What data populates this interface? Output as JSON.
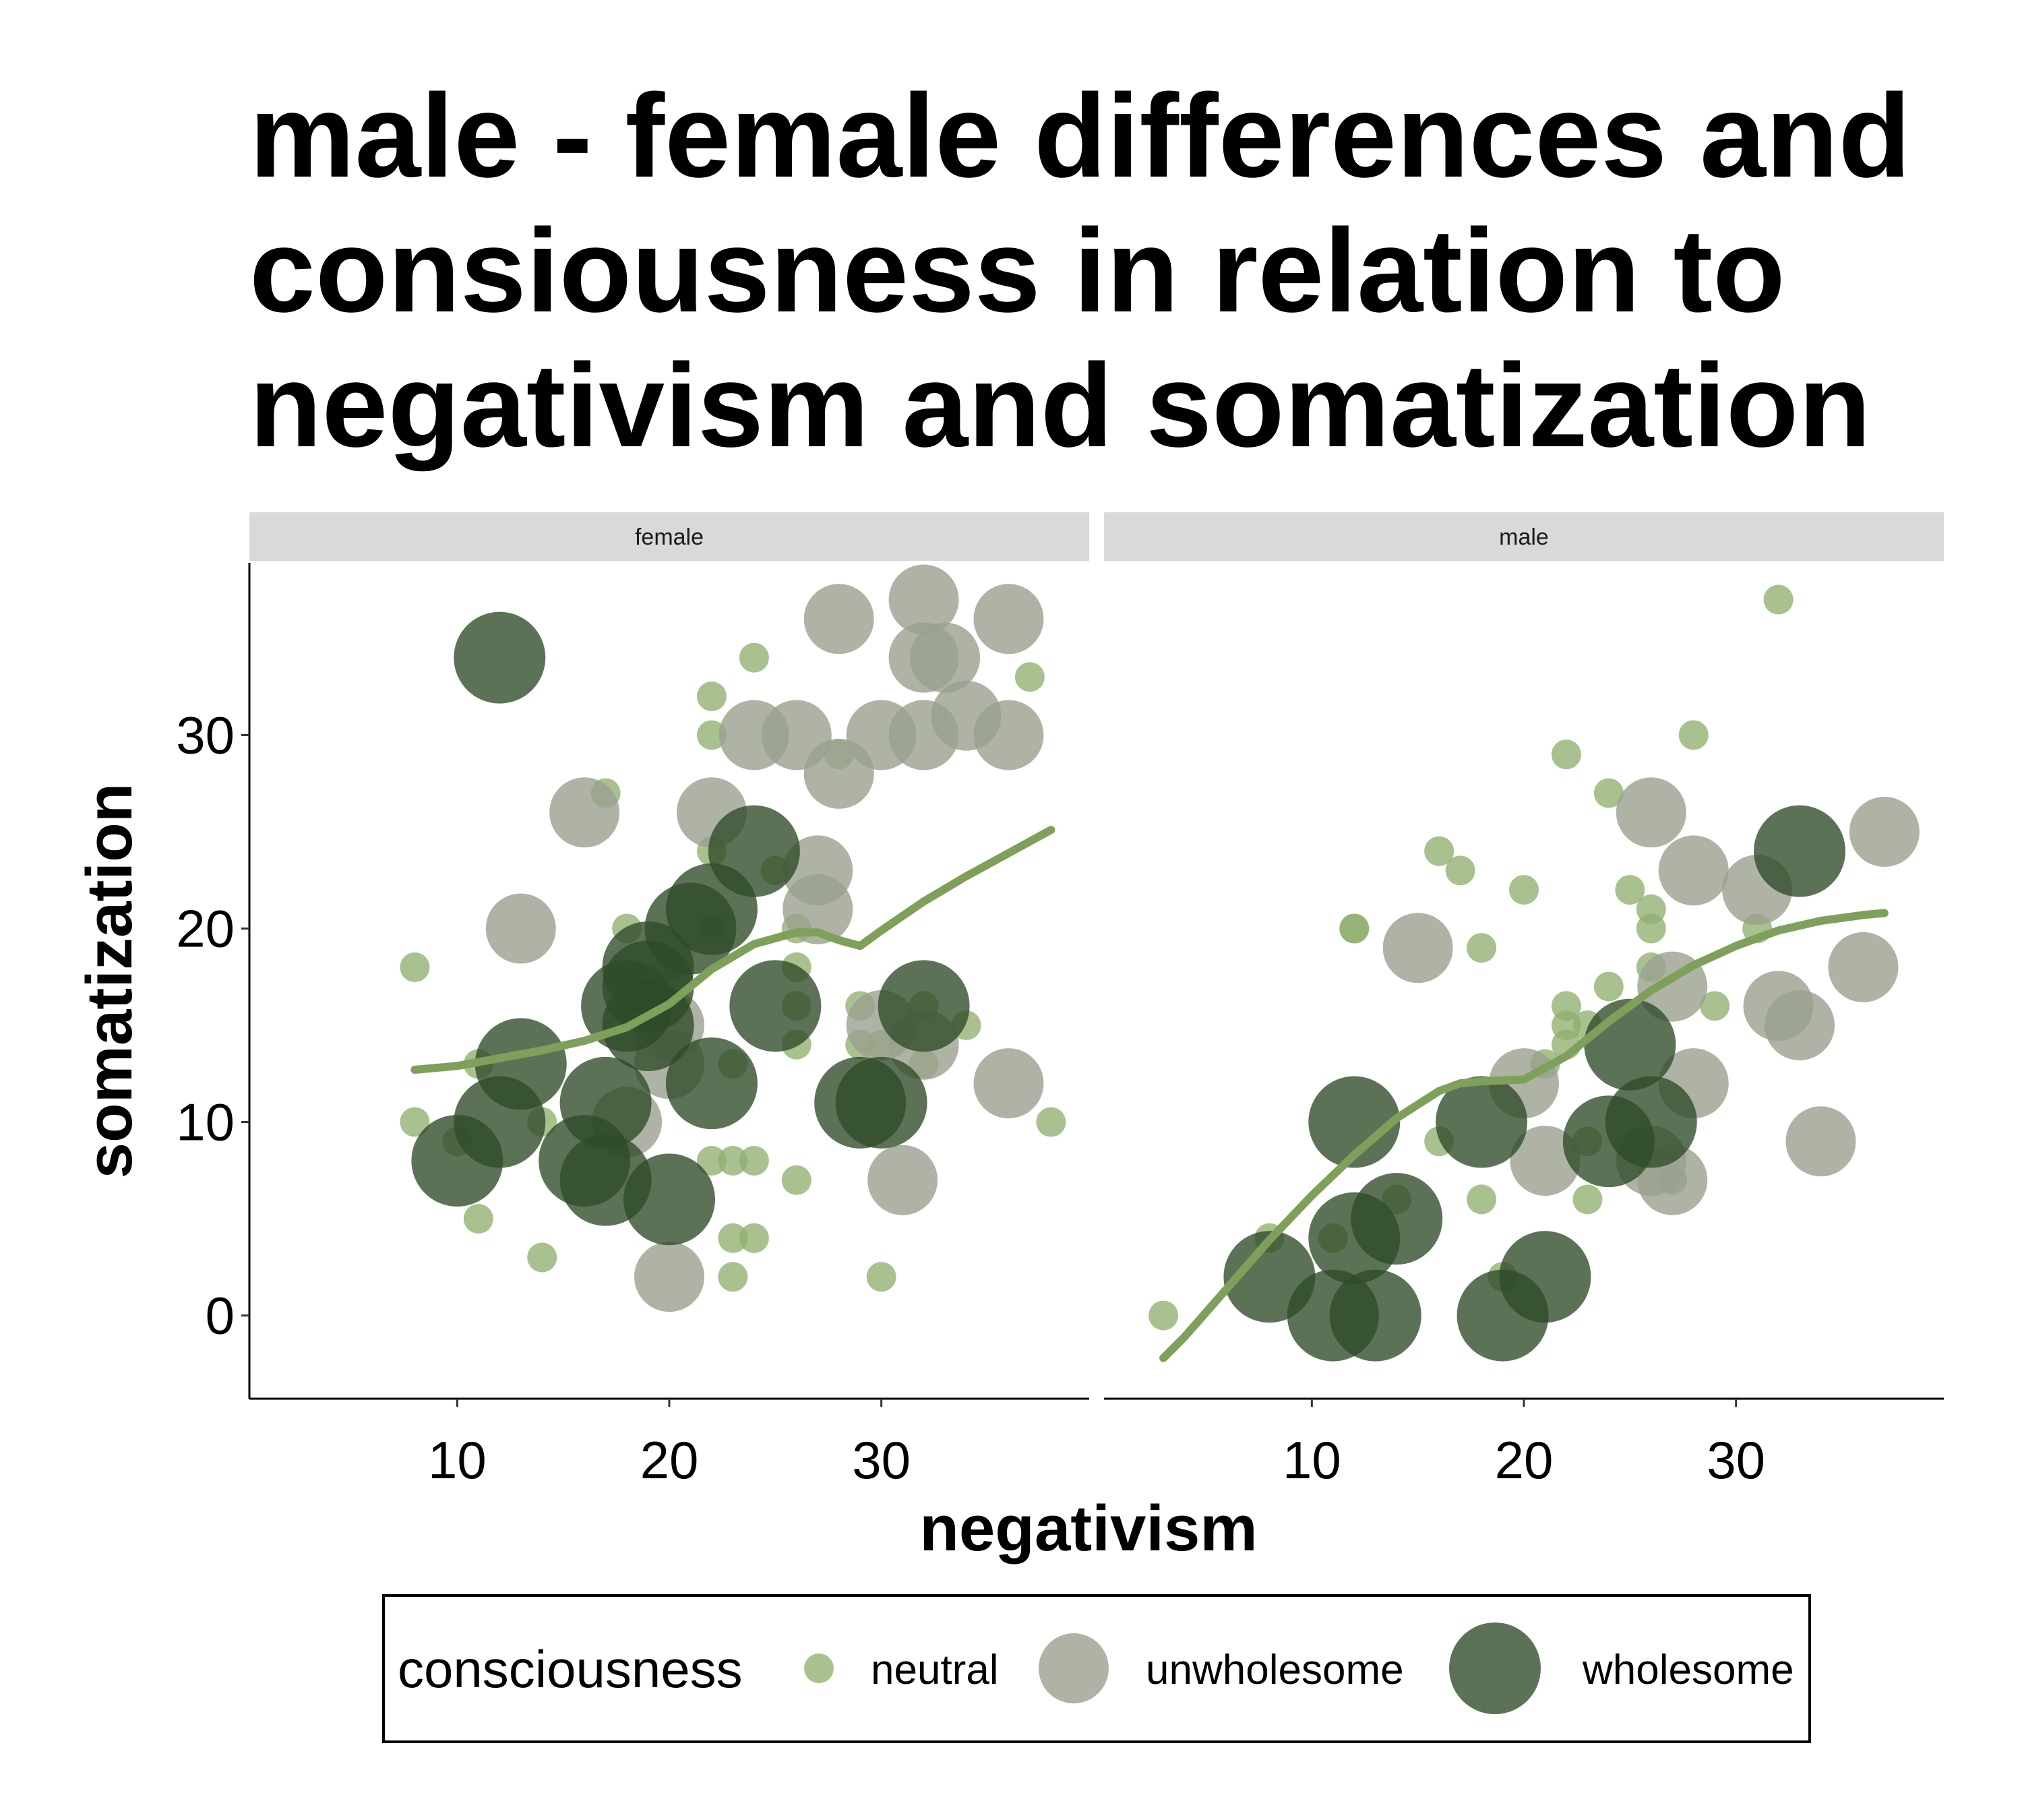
{
  "chart_data": {
    "type": "scatter",
    "title_lines": [
      "male - female differences and",
      "consiousness in relation to",
      "negativism and somatization"
    ],
    "xlabel": "negativism",
    "ylabel": "somatization",
    "xlim": [
      0.2,
      39.8
    ],
    "ylim": [
      -4.3,
      38.9
    ],
    "xticks": [
      10,
      20,
      30
    ],
    "yticks": [
      0,
      10,
      20,
      30
    ],
    "grid": false,
    "smooth_color": "#7FA05A",
    "legend": {
      "title": "consciousness",
      "position": "bottom",
      "items": [
        {
          "label": "neutral",
          "size_rank": 1,
          "color": "#8FAF70"
        },
        {
          "label": "unwholesome",
          "size_rank": 2,
          "color": "#9AA08E"
        },
        {
          "label": "wholesome",
          "size_rank": 3,
          "color": "#2E4A28"
        }
      ]
    },
    "panels": [
      {
        "strip": "female",
        "points": [
          {
            "x": 8,
            "y": 18,
            "c": "neutral"
          },
          {
            "x": 8,
            "y": 10,
            "c": "neutral"
          },
          {
            "x": 10,
            "y": 9,
            "c": "neutral"
          },
          {
            "x": 11,
            "y": 13,
            "c": "neutral"
          },
          {
            "x": 11,
            "y": 5,
            "c": "neutral"
          },
          {
            "x": 14,
            "y": 3,
            "c": "neutral"
          },
          {
            "x": 14,
            "y": 10,
            "c": "neutral"
          },
          {
            "x": 17,
            "y": 27,
            "c": "neutral"
          },
          {
            "x": 18,
            "y": 20,
            "c": "neutral"
          },
          {
            "x": 20,
            "y": 14,
            "c": "neutral"
          },
          {
            "x": 20,
            "y": 18,
            "c": "neutral"
          },
          {
            "x": 22,
            "y": 32,
            "c": "neutral"
          },
          {
            "x": 22,
            "y": 30,
            "c": "neutral"
          },
          {
            "x": 22,
            "y": 24,
            "c": "neutral"
          },
          {
            "x": 22,
            "y": 20,
            "c": "neutral"
          },
          {
            "x": 22,
            "y": 8,
            "c": "neutral"
          },
          {
            "x": 23,
            "y": 8,
            "c": "neutral"
          },
          {
            "x": 23,
            "y": 4,
            "c": "neutral"
          },
          {
            "x": 23,
            "y": 2,
            "c": "neutral"
          },
          {
            "x": 23,
            "y": 13,
            "c": "neutral"
          },
          {
            "x": 24,
            "y": 34,
            "c": "neutral"
          },
          {
            "x": 24,
            "y": 8,
            "c": "neutral"
          },
          {
            "x": 24,
            "y": 4,
            "c": "neutral"
          },
          {
            "x": 25,
            "y": 23,
            "c": "neutral"
          },
          {
            "x": 26,
            "y": 20,
            "c": "neutral"
          },
          {
            "x": 26,
            "y": 18,
            "c": "neutral"
          },
          {
            "x": 26,
            "y": 16,
            "c": "neutral"
          },
          {
            "x": 26,
            "y": 14,
            "c": "neutral"
          },
          {
            "x": 26,
            "y": 7,
            "c": "neutral"
          },
          {
            "x": 28,
            "y": 29,
            "c": "neutral"
          },
          {
            "x": 29,
            "y": 16,
            "c": "neutral"
          },
          {
            "x": 29,
            "y": 14,
            "c": "neutral"
          },
          {
            "x": 30,
            "y": 14,
            "c": "neutral"
          },
          {
            "x": 30,
            "y": 2,
            "c": "neutral"
          },
          {
            "x": 32,
            "y": 16,
            "c": "neutral"
          },
          {
            "x": 32,
            "y": 13,
            "c": "neutral"
          },
          {
            "x": 34,
            "y": 15,
            "c": "neutral"
          },
          {
            "x": 37,
            "y": 33,
            "c": "neutral"
          },
          {
            "x": 38,
            "y": 10,
            "c": "neutral"
          },
          {
            "x": 13,
            "y": 20,
            "c": "unwholesome"
          },
          {
            "x": 16,
            "y": 26,
            "c": "unwholesome"
          },
          {
            "x": 18,
            "y": 10,
            "c": "unwholesome"
          },
          {
            "x": 20,
            "y": 15,
            "c": "unwholesome"
          },
          {
            "x": 20,
            "y": 13,
            "c": "unwholesome"
          },
          {
            "x": 20,
            "y": 2,
            "c": "unwholesome"
          },
          {
            "x": 22,
            "y": 26,
            "c": "unwholesome"
          },
          {
            "x": 24,
            "y": 30,
            "c": "unwholesome"
          },
          {
            "x": 26,
            "y": 30,
            "c": "unwholesome"
          },
          {
            "x": 27,
            "y": 23,
            "c": "unwholesome"
          },
          {
            "x": 27,
            "y": 21,
            "c": "unwholesome"
          },
          {
            "x": 28,
            "y": 36,
            "c": "unwholesome"
          },
          {
            "x": 28,
            "y": 28,
            "c": "unwholesome"
          },
          {
            "x": 30,
            "y": 30,
            "c": "unwholesome"
          },
          {
            "x": 30,
            "y": 15,
            "c": "unwholesome"
          },
          {
            "x": 31,
            "y": 7,
            "c": "unwholesome"
          },
          {
            "x": 32,
            "y": 37,
            "c": "unwholesome"
          },
          {
            "x": 32,
            "y": 34,
            "c": "unwholesome"
          },
          {
            "x": 32,
            "y": 30,
            "c": "unwholesome"
          },
          {
            "x": 32,
            "y": 14,
            "c": "unwholesome"
          },
          {
            "x": 33,
            "y": 34,
            "c": "unwholesome"
          },
          {
            "x": 34,
            "y": 31,
            "c": "unwholesome"
          },
          {
            "x": 36,
            "y": 36,
            "c": "unwholesome"
          },
          {
            "x": 36,
            "y": 30,
            "c": "unwholesome"
          },
          {
            "x": 36,
            "y": 12,
            "c": "unwholesome"
          },
          {
            "x": 12,
            "y": 34,
            "c": "wholesome"
          },
          {
            "x": 13,
            "y": 13,
            "c": "wholesome"
          },
          {
            "x": 12,
            "y": 10,
            "c": "wholesome"
          },
          {
            "x": 10,
            "y": 8,
            "c": "wholesome"
          },
          {
            "x": 16,
            "y": 8,
            "c": "wholesome"
          },
          {
            "x": 17,
            "y": 11,
            "c": "wholesome"
          },
          {
            "x": 17,
            "y": 7,
            "c": "wholesome"
          },
          {
            "x": 18,
            "y": 16,
            "c": "wholesome"
          },
          {
            "x": 19,
            "y": 18,
            "c": "wholesome"
          },
          {
            "x": 19,
            "y": 17,
            "c": "wholesome"
          },
          {
            "x": 19,
            "y": 15,
            "c": "wholesome"
          },
          {
            "x": 20,
            "y": 6,
            "c": "wholesome"
          },
          {
            "x": 21,
            "y": 20,
            "c": "wholesome"
          },
          {
            "x": 22,
            "y": 21,
            "c": "wholesome"
          },
          {
            "x": 22,
            "y": 12,
            "c": "wholesome"
          },
          {
            "x": 24,
            "y": 24,
            "c": "wholesome"
          },
          {
            "x": 25,
            "y": 16,
            "c": "wholesome"
          },
          {
            "x": 29,
            "y": 11,
            "c": "wholesome"
          },
          {
            "x": 30,
            "y": 11,
            "c": "wholesome"
          },
          {
            "x": 32,
            "y": 16,
            "c": "wholesome"
          }
        ],
        "smooth": {
          "x": [
            8,
            10,
            12,
            14,
            16,
            18,
            20,
            22,
            24,
            26,
            27,
            28,
            29,
            30,
            32,
            34,
            36,
            38
          ],
          "y": [
            12.7,
            12.9,
            13.3,
            13.7,
            14.2,
            14.9,
            16.1,
            17.9,
            19.2,
            19.8,
            19.8,
            19.4,
            19.1,
            19.9,
            21.4,
            22.7,
            23.9,
            25.1
          ]
        }
      },
      {
        "strip": "male",
        "points": [
          {
            "x": 3,
            "y": 0,
            "c": "neutral"
          },
          {
            "x": 8,
            "y": 4,
            "c": "neutral"
          },
          {
            "x": 11,
            "y": 4,
            "c": "neutral"
          },
          {
            "x": 12,
            "y": 20,
            "c": "neutral"
          },
          {
            "x": 12,
            "y": 20,
            "c": "neutral"
          },
          {
            "x": 14,
            "y": 6,
            "c": "neutral"
          },
          {
            "x": 16,
            "y": 24,
            "c": "neutral"
          },
          {
            "x": 16,
            "y": 9,
            "c": "neutral"
          },
          {
            "x": 17,
            "y": 23,
            "c": "neutral"
          },
          {
            "x": 18,
            "y": 19,
            "c": "neutral"
          },
          {
            "x": 18,
            "y": 6,
            "c": "neutral"
          },
          {
            "x": 19,
            "y": 2,
            "c": "neutral"
          },
          {
            "x": 20,
            "y": 22,
            "c": "neutral"
          },
          {
            "x": 21,
            "y": 13,
            "c": "neutral"
          },
          {
            "x": 22,
            "y": 29,
            "c": "neutral"
          },
          {
            "x": 22,
            "y": 16,
            "c": "neutral"
          },
          {
            "x": 22,
            "y": 15,
            "c": "neutral"
          },
          {
            "x": 22,
            "y": 14,
            "c": "neutral"
          },
          {
            "x": 23,
            "y": 15,
            "c": "neutral"
          },
          {
            "x": 23,
            "y": 9,
            "c": "neutral"
          },
          {
            "x": 23,
            "y": 6,
            "c": "neutral"
          },
          {
            "x": 24,
            "y": 27,
            "c": "neutral"
          },
          {
            "x": 24,
            "y": 17,
            "c": "neutral"
          },
          {
            "x": 25,
            "y": 22,
            "c": "neutral"
          },
          {
            "x": 26,
            "y": 21,
            "c": "neutral"
          },
          {
            "x": 26,
            "y": 20,
            "c": "neutral"
          },
          {
            "x": 26,
            "y": 18,
            "c": "neutral"
          },
          {
            "x": 27,
            "y": 7,
            "c": "neutral"
          },
          {
            "x": 28,
            "y": 30,
            "c": "neutral"
          },
          {
            "x": 29,
            "y": 16,
            "c": "neutral"
          },
          {
            "x": 31,
            "y": 20,
            "c": "neutral"
          },
          {
            "x": 32,
            "y": 37,
            "c": "neutral"
          },
          {
            "x": 15,
            "y": 19,
            "c": "unwholesome"
          },
          {
            "x": 20,
            "y": 12,
            "c": "unwholesome"
          },
          {
            "x": 21,
            "y": 8,
            "c": "unwholesome"
          },
          {
            "x": 26,
            "y": 26,
            "c": "unwholesome"
          },
          {
            "x": 26,
            "y": 8,
            "c": "unwholesome"
          },
          {
            "x": 27,
            "y": 17,
            "c": "unwholesome"
          },
          {
            "x": 27,
            "y": 7,
            "c": "unwholesome"
          },
          {
            "x": 28,
            "y": 23,
            "c": "unwholesome"
          },
          {
            "x": 28,
            "y": 12,
            "c": "unwholesome"
          },
          {
            "x": 31,
            "y": 22,
            "c": "unwholesome"
          },
          {
            "x": 32,
            "y": 16,
            "c": "unwholesome"
          },
          {
            "x": 33,
            "y": 15,
            "c": "unwholesome"
          },
          {
            "x": 34,
            "y": 9,
            "c": "unwholesome"
          },
          {
            "x": 36,
            "y": 18,
            "c": "unwholesome"
          },
          {
            "x": 37,
            "y": 25,
            "c": "unwholesome"
          },
          {
            "x": 8,
            "y": 2,
            "c": "wholesome"
          },
          {
            "x": 11,
            "y": 0,
            "c": "wholesome"
          },
          {
            "x": 12,
            "y": 10,
            "c": "wholesome"
          },
          {
            "x": 12,
            "y": 4,
            "c": "wholesome"
          },
          {
            "x": 13,
            "y": 0,
            "c": "wholesome"
          },
          {
            "x": 14,
            "y": 5,
            "c": "wholesome"
          },
          {
            "x": 18,
            "y": 10,
            "c": "wholesome"
          },
          {
            "x": 19,
            "y": 0,
            "c": "wholesome"
          },
          {
            "x": 21,
            "y": 2,
            "c": "wholesome"
          },
          {
            "x": 24,
            "y": 9,
            "c": "wholesome"
          },
          {
            "x": 25,
            "y": 14,
            "c": "wholesome"
          },
          {
            "x": 26,
            "y": 10,
            "c": "wholesome"
          },
          {
            "x": 33,
            "y": 24,
            "c": "wholesome"
          }
        ],
        "smooth": {
          "x": [
            3,
            4,
            6,
            8,
            10,
            12,
            14,
            16,
            17,
            18,
            20,
            22,
            24,
            26,
            28,
            30,
            32,
            34,
            36,
            37
          ],
          "y": [
            -2.2,
            -1.1,
            1.4,
            3.9,
            6.2,
            8.3,
            10.2,
            11.6,
            12.0,
            12.1,
            12.2,
            13.4,
            15.2,
            16.8,
            18.1,
            19.1,
            19.9,
            20.4,
            20.7,
            20.8
          ]
        }
      }
    ]
  }
}
